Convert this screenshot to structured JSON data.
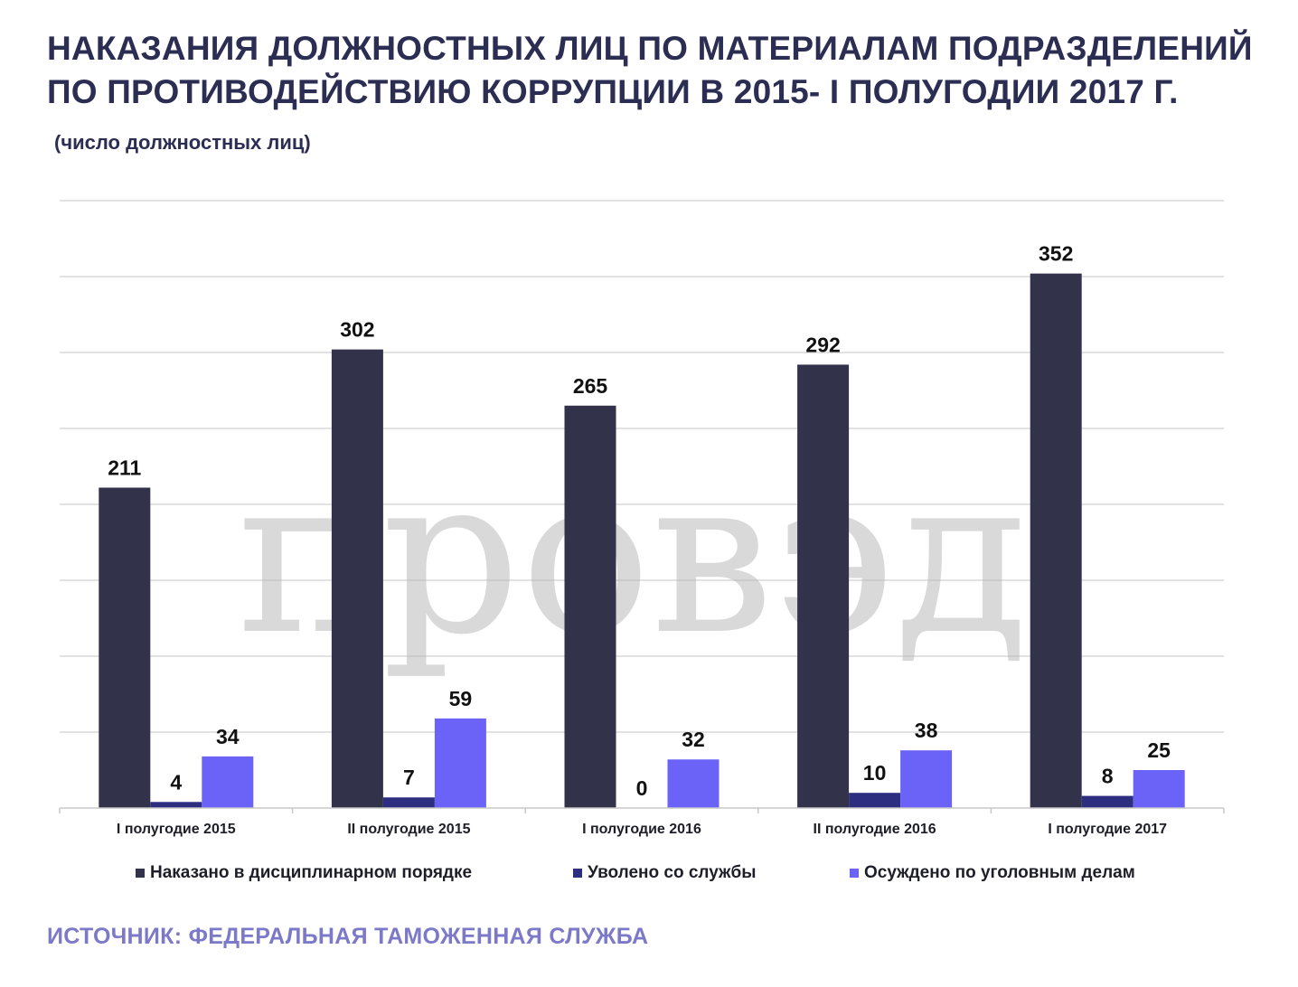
{
  "title_lines": [
    "НАКАЗАНИЯ ДОЛЖНОСТНЫХ ЛИЦ ПО МАТЕРИАЛАМ ПОДРАЗДЕЛЕНИЙ",
    "ПО ПРОТИВОДЕЙСТВИЮ КОРРУПЦИИ В 2015- I ПОЛУГОДИИ 2017 Г."
  ],
  "subtitle": "(число должностных лиц)",
  "watermark": "провэд",
  "source": "ИСТОЧНИК: ФЕДЕРАЛЬНАЯ ТАМОЖЕННАЯ СЛУЖБА",
  "chart_data": {
    "type": "bar",
    "title": "НАКАЗАНИЯ ДОЛЖНОСТНЫХ ЛИЦ ПО МАТЕРИАЛАМ ПОДРАЗДЕЛЕНИЙ ПО ПРОТИВОДЕЙСТВИЮ КОРРУПЦИИ В 2015- I ПОЛУГОДИИ 2017 Г.",
    "subtitle": "(число должностных лиц)",
    "categories": [
      "I полугодие 2015",
      "II полугодие 2015",
      "I полугодие 2016",
      "II полугодие 2016",
      "I полугодие 2017"
    ],
    "series": [
      {
        "name": "Наказано в дисциплинарном порядке",
        "color": "#32324a",
        "values": [
          211,
          302,
          265,
          292,
          352
        ]
      },
      {
        "name": "Уволено со службы",
        "color": "#2e2e80",
        "values": [
          4,
          7,
          0,
          10,
          8
        ]
      },
      {
        "name": "Осуждено по уголовным делам",
        "color": "#6b63f7",
        "values": [
          34,
          59,
          32,
          38,
          25
        ]
      }
    ],
    "ylim": [
      0,
      400
    ],
    "grid": true,
    "legend": "bottom",
    "data_labels": true,
    "xlabel": "",
    "ylabel": ""
  }
}
